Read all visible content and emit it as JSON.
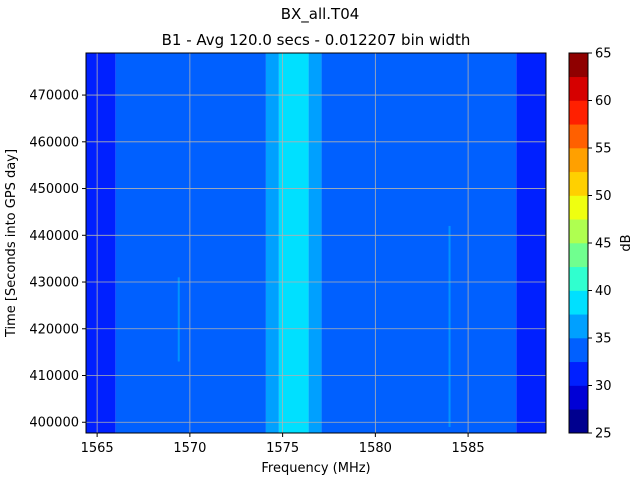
{
  "chart_data": {
    "type": "heatmap",
    "title": "BX_all.T04",
    "subtitle": "B1 - Avg 120.0 secs - 0.012207 bin width",
    "xlabel": "Frequency (MHz)",
    "ylabel": "Time [Seconds into GPS day]",
    "xlim": [
      1564.4,
      1589.2
    ],
    "ylim": [
      397700,
      479000
    ],
    "xticks": [
      "1565",
      "1570",
      "1575",
      "1580",
      "1585"
    ],
    "yticks": [
      "400000",
      "410000",
      "420000",
      "430000",
      "440000",
      "450000",
      "460000",
      "470000"
    ],
    "grid": true,
    "colorbar": {
      "label": "dB",
      "range": [
        25,
        65
      ],
      "ticks": [
        "25",
        "30",
        "35",
        "40",
        "45",
        "50",
        "55",
        "60",
        "65"
      ],
      "levels": [
        25,
        27.5,
        30,
        32.5,
        35,
        37.5,
        40,
        42.5,
        45,
        47.5,
        50,
        52.5,
        55,
        57.5,
        60,
        62.5,
        65
      ],
      "colors": [
        "#00008f",
        "#0000d6",
        "#0020ff",
        "#0060ff",
        "#00a0ff",
        "#00e0ff",
        "#30ffcf",
        "#70ff8f",
        "#afff50",
        "#efff10",
        "#ffd000",
        "#ffa000",
        "#ff6000",
        "#ff2000",
        "#d60000",
        "#8f0000"
      ]
    },
    "frequency_bands_db": [
      {
        "from": 1564.4,
        "to": 1566.0,
        "db": 31.0
      },
      {
        "from": 1566.0,
        "to": 1574.1,
        "db": 33.5
      },
      {
        "from": 1574.1,
        "to": 1574.8,
        "db": 36.0
      },
      {
        "from": 1574.8,
        "to": 1576.4,
        "db": 38.5
      },
      {
        "from": 1576.4,
        "to": 1577.1,
        "db": 36.0
      },
      {
        "from": 1577.1,
        "to": 1587.6,
        "db": 33.5
      },
      {
        "from": 1587.6,
        "to": 1589.2,
        "db": 31.0
      }
    ],
    "spur_lines": [
      {
        "freq": 1584.0,
        "db": 36.0,
        "t_from": 399000,
        "t_to": 442000
      },
      {
        "freq": 1569.4,
        "db": 36.0,
        "t_from": 413000,
        "t_to": 431000
      }
    ]
  }
}
